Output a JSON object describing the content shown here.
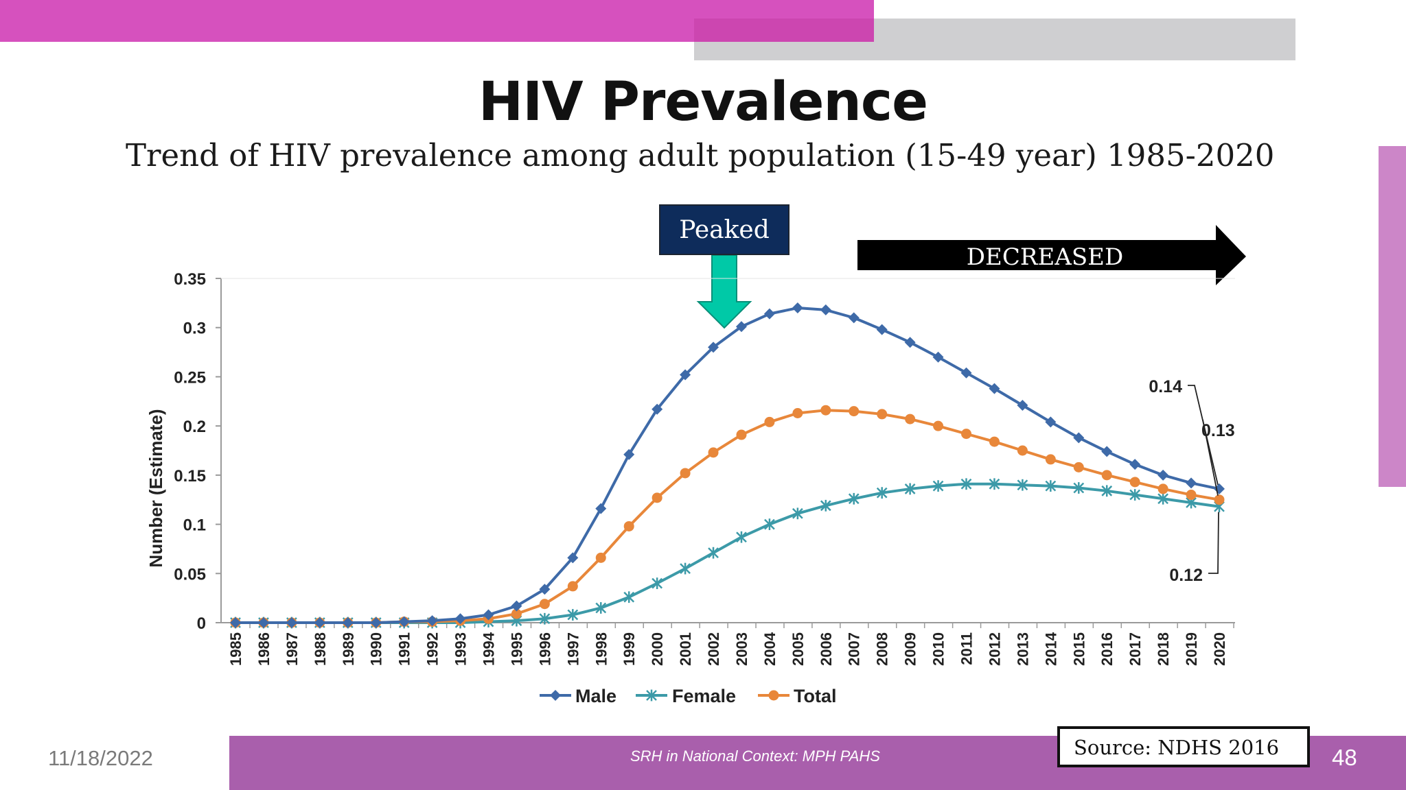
{
  "slide": {
    "title": "HIV Prevalence",
    "subtitle": "Trend of HIV prevalence among adult population (15-49 year) 1985-2020",
    "peaked_label": "Peaked",
    "decreased_label": "DECREASED",
    "source": "Source: NDHS 2016",
    "footer_text": "SRH in National Context: MPH PAHS",
    "date": "11/18/2022",
    "page_number": "48"
  },
  "colors": {
    "pink": "#d651be",
    "gray": "#cfcfd1",
    "footer": "#a95fac",
    "male": "#3e6aa8",
    "female": "#3c9aa8",
    "total": "#e8873a",
    "peaked_box": "#0e2c5b",
    "arrow_teal": "#00c9a7"
  },
  "chart_data": {
    "type": "line",
    "ylabel": "Number (Estimate)",
    "ylim": [
      0,
      0.35
    ],
    "yticks": [
      "0",
      "0.05",
      "0.1",
      "0.15",
      "0.2",
      "0.25",
      "0.3",
      "0.35"
    ],
    "categories": [
      "1985",
      "1986",
      "1987",
      "1988",
      "1989",
      "1990",
      "1991",
      "1992",
      "1993",
      "1994",
      "1995",
      "1996",
      "1997",
      "1998",
      "1999",
      "2000",
      "2001",
      "2002",
      "2003",
      "2004",
      "2005",
      "2006",
      "2007",
      "2008",
      "2009",
      "2010",
      "2011",
      "2012",
      "2013",
      "2014",
      "2015",
      "2016",
      "2017",
      "2018",
      "2019",
      "2020"
    ],
    "series": [
      {
        "name": "Male",
        "marker": "diamond",
        "values": [
          0,
          0,
          0,
          0,
          0,
          0,
          0.001,
          0.002,
          0.004,
          0.008,
          0.017,
          0.034,
          0.066,
          0.116,
          0.171,
          0.217,
          0.252,
          0.28,
          0.301,
          0.314,
          0.32,
          0.318,
          0.31,
          0.298,
          0.285,
          0.27,
          0.254,
          0.238,
          0.221,
          0.204,
          0.188,
          0.174,
          0.161,
          0.15,
          0.142,
          0.136
        ]
      },
      {
        "name": "Female",
        "marker": "asterisk",
        "values": [
          0,
          0,
          0,
          0,
          0,
          0,
          0,
          0,
          0,
          0.001,
          0.002,
          0.004,
          0.008,
          0.015,
          0.026,
          0.04,
          0.055,
          0.071,
          0.087,
          0.1,
          0.111,
          0.119,
          0.126,
          0.132,
          0.136,
          0.139,
          0.141,
          0.141,
          0.14,
          0.139,
          0.137,
          0.134,
          0.13,
          0.126,
          0.122,
          0.118
        ]
      },
      {
        "name": "Total",
        "marker": "circle",
        "values": [
          0,
          0,
          0,
          0,
          0,
          0,
          0.001,
          0.001,
          0.002,
          0.004,
          0.009,
          0.019,
          0.037,
          0.066,
          0.098,
          0.127,
          0.152,
          0.173,
          0.191,
          0.204,
          0.213,
          0.216,
          0.215,
          0.212,
          0.207,
          0.2,
          0.192,
          0.184,
          0.175,
          0.166,
          0.158,
          0.15,
          0.143,
          0.136,
          0.13,
          0.125
        ]
      }
    ],
    "annotations": [
      {
        "text": "0.14",
        "series": "Male",
        "year": "2020"
      },
      {
        "text": "0.13",
        "series": "Total",
        "year": "2020"
      },
      {
        "text": "0.12",
        "series": "Female",
        "year": "2020"
      }
    ],
    "legend_position": "bottom"
  }
}
